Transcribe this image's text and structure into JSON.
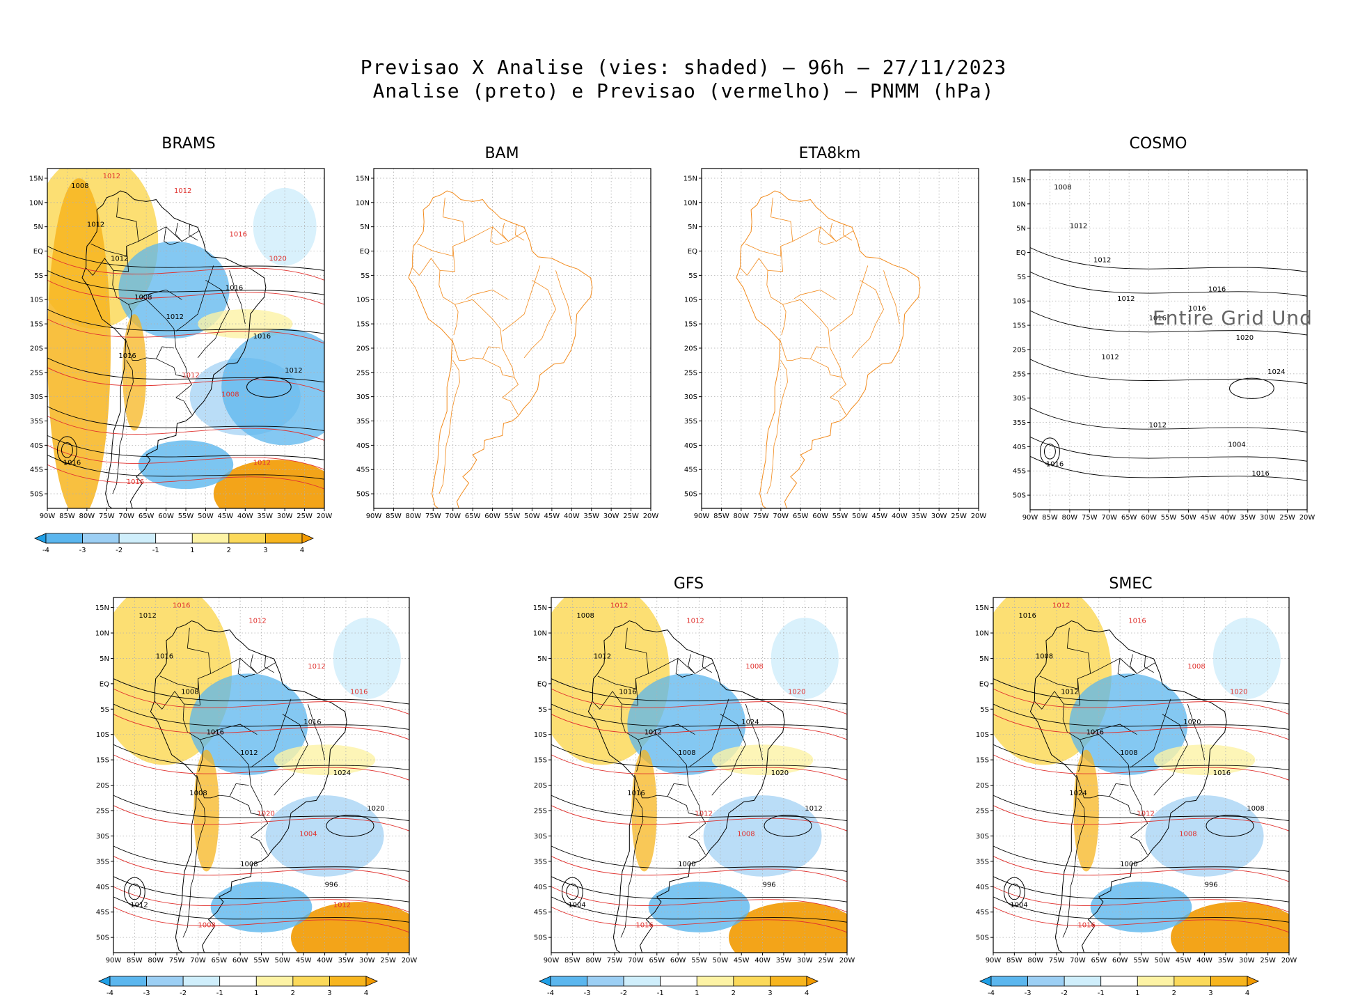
{
  "header": {
    "line1": "Previsao X Analise (vies: shaded) — 96h — 27/11/2023",
    "line2": "Analise (preto) e Previsao (vermelho) — PNMM (hPa)"
  },
  "axes": {
    "lat_labels": [
      "15N",
      "10N",
      "5N",
      "EQ",
      "5S",
      "10S",
      "15S",
      "20S",
      "25S",
      "30S",
      "35S",
      "40S",
      "45S",
      "50S"
    ],
    "lon_labels": [
      "90W",
      "85W",
      "80W",
      "75W",
      "70W",
      "65W",
      "60W",
      "55W",
      "50W",
      "45W",
      "40W",
      "35W",
      "30W",
      "25W",
      "20W"
    ]
  },
  "colorbar": {
    "labels": [
      "-4",
      "-3",
      "-2",
      "-1",
      "1",
      "2",
      "3",
      "4"
    ],
    "colors": [
      "#1f9fe6",
      "#5bb6ee",
      "#9ccff4",
      "#cfeefb",
      "#ffffff",
      "#fdf3a5",
      "#fbd95a",
      "#f7b51f",
      "#f29a00"
    ]
  },
  "colors": {
    "analysis_contour": "#000000",
    "forecast_contour": "#e0322f",
    "map_outline_empty": "#f28b1d",
    "grid": "#b0b0b0"
  },
  "panels": [
    {
      "id": "brams",
      "title": "BRAMS",
      "style": "shaded",
      "labels_black": [
        "1008",
        "1012",
        "1012",
        "1008",
        "1012",
        "1016",
        "1016",
        "1016",
        "1012",
        "1016"
      ],
      "labels_red": [
        "1012",
        "1012",
        "1016",
        "1020",
        "1012",
        "1008",
        "1016",
        "1012"
      ]
    },
    {
      "id": "bam",
      "title": "BAM",
      "style": "empty"
    },
    {
      "id": "eta8km",
      "title": "ETA8km",
      "style": "empty"
    },
    {
      "id": "cosmo",
      "title": "COSMO",
      "style": "analysis_only",
      "warning": "Entire Grid Und",
      "labels_black": [
        "1008",
        "1012",
        "1012",
        "1012",
        "1016",
        "1012",
        "1016",
        "1020",
        "1024",
        "1016",
        "1012",
        "1004",
        "1016",
        "1016"
      ]
    },
    {
      "id": "bottom-left",
      "title": "",
      "style": "shaded",
      "labels_black": [
        "1012",
        "1016",
        "1008",
        "1016",
        "1012",
        "1008",
        "1016",
        "1024",
        "1020",
        "1012",
        "1008",
        "996"
      ],
      "labels_red": [
        "1016",
        "1012",
        "1012",
        "1016",
        "1020",
        "1004",
        "1008",
        "1012"
      ]
    },
    {
      "id": "gfs",
      "title": "GFS",
      "style": "shaded",
      "labels_black": [
        "1008",
        "1012",
        "1016",
        "1012",
        "1008",
        "1016",
        "1024",
        "1020",
        "1012",
        "1004",
        "1000",
        "996"
      ],
      "labels_red": [
        "1012",
        "1012",
        "1008",
        "1020",
        "1012",
        "1008",
        "1016"
      ]
    },
    {
      "id": "smec",
      "title": "SMEC",
      "style": "shaded",
      "labels_black": [
        "1016",
        "1008",
        "1012",
        "1016",
        "1008",
        "1024",
        "1020",
        "1016",
        "1008",
        "1004",
        "1000",
        "996"
      ],
      "labels_red": [
        "1012",
        "1016",
        "1008",
        "1020",
        "1012",
        "1008",
        "1016"
      ]
    }
  ]
}
